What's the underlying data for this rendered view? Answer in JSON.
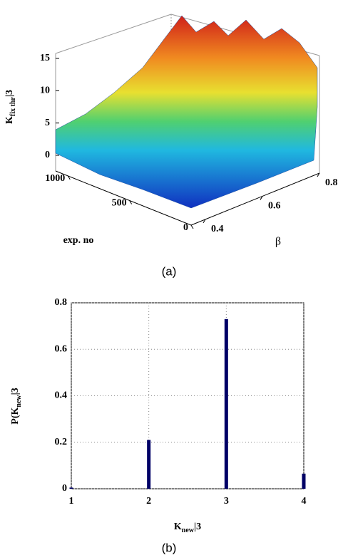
{
  "chart_data": [
    {
      "type": "surface",
      "caption": "(a)",
      "xlabel": "exp. no",
      "ylabel": "β",
      "zlabel": [
        "K",
        "fix thr",
        "|3"
      ],
      "xlim": [
        0,
        1100
      ],
      "xticks": [
        0,
        500,
        1000
      ],
      "ylim": [
        0.35,
        0.8
      ],
      "yticks": [
        0.4,
        0.6,
        0.8
      ],
      "zlim": [
        0,
        15
      ],
      "zticks": [
        0,
        5,
        10,
        15
      ]
    },
    {
      "type": "bar",
      "caption": "(b)",
      "xlabel": [
        "K",
        "new",
        "|3"
      ],
      "ylabel": [
        "P(K",
        "new",
        "|3"
      ],
      "x": [
        1,
        2,
        3,
        4
      ],
      "values": [
        0.005,
        0.21,
        0.73,
        0.065
      ],
      "color": "#000066",
      "xlim": [
        1,
        4
      ],
      "xticks": [
        1,
        2,
        3,
        4
      ],
      "ylim": [
        0,
        0.8
      ],
      "yticks": [
        0,
        0.2,
        0.4,
        0.6,
        0.8
      ],
      "grid": true
    }
  ]
}
